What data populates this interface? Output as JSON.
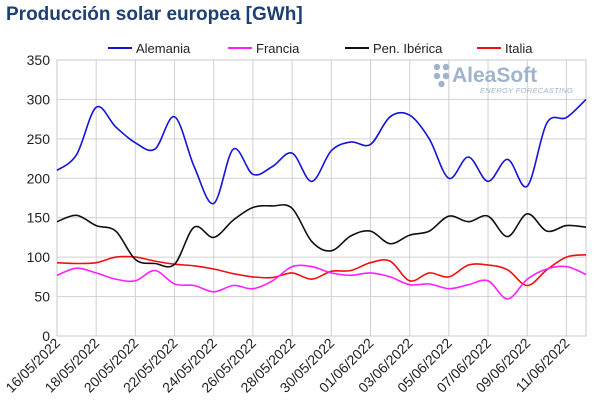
{
  "title": "Producción solar europea [GWh]",
  "watermark": {
    "brand": "AleaSoft",
    "tagline": "ENERGY FORECASTING",
    "color": "#9fb4cc"
  },
  "chart_data": {
    "type": "line",
    "title": "Producción solar europea [GWh]",
    "xlabel": "",
    "ylabel": "",
    "ylim": [
      0,
      350
    ],
    "yticks": [
      0,
      50,
      100,
      150,
      200,
      250,
      300,
      350
    ],
    "grid": true,
    "legend_position": "top",
    "x": [
      "16/05/2022",
      "17/05/2022",
      "18/05/2022",
      "19/05/2022",
      "20/05/2022",
      "21/05/2022",
      "22/05/2022",
      "23/05/2022",
      "24/05/2022",
      "25/05/2022",
      "26/05/2022",
      "27/05/2022",
      "28/05/2022",
      "29/05/2022",
      "30/05/2022",
      "31/05/2022",
      "01/06/2022",
      "02/06/2022",
      "03/06/2022",
      "04/06/2022",
      "05/06/2022",
      "06/06/2022",
      "07/06/2022",
      "08/06/2022",
      "09/06/2022",
      "10/06/2022",
      "11/06/2022",
      "12/06/2022"
    ],
    "xtick_labels": [
      "16/05/2022",
      "18/05/2022",
      "20/05/2022",
      "22/05/2022",
      "24/05/2022",
      "26/05/2022",
      "28/05/2022",
      "30/05/2022",
      "01/06/2022",
      "03/06/2022",
      "05/06/2022",
      "07/06/2022",
      "09/06/2022",
      "11/06/2022"
    ],
    "series": [
      {
        "name": "Alemania",
        "color": "#1414d8",
        "values": [
          210,
          230,
          290,
          265,
          245,
          237,
          278,
          215,
          168,
          237,
          205,
          215,
          232,
          196,
          235,
          246,
          243,
          278,
          280,
          250,
          200,
          227,
          196,
          224,
          190,
          270,
          277,
          300
        ]
      },
      {
        "name": "Francia",
        "color": "#ff20ff",
        "values": [
          77,
          86,
          80,
          72,
          70,
          83,
          66,
          64,
          56,
          64,
          60,
          70,
          88,
          88,
          80,
          77,
          80,
          75,
          65,
          66,
          60,
          65,
          70,
          47,
          72,
          85,
          88,
          78
        ]
      },
      {
        "name": "Pen. Ibérica",
        "color": "#101010",
        "values": [
          145,
          153,
          140,
          133,
          97,
          92,
          91,
          138,
          125,
          147,
          163,
          165,
          162,
          120,
          108,
          127,
          133,
          117,
          128,
          133,
          152,
          145,
          152,
          126,
          155,
          133,
          140,
          138
        ]
      },
      {
        "name": "Italia",
        "color": "#f01010",
        "values": [
          93,
          92,
          93,
          100,
          100,
          95,
          91,
          89,
          85,
          79,
          75,
          74,
          80,
          72,
          82,
          83,
          93,
          95,
          70,
          80,
          75,
          90,
          90,
          84,
          64,
          84,
          100,
          103
        ]
      }
    ]
  }
}
